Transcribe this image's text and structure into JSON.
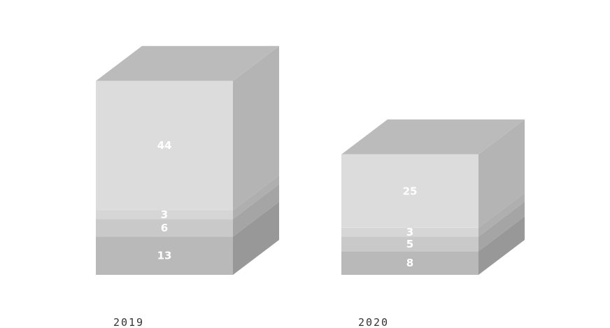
{
  "chart_data": {
    "type": "bar",
    "stacked": true,
    "style": "3d",
    "categories": [
      "2019",
      "2020"
    ],
    "series": [
      {
        "values": [
          13,
          8
        ],
        "color": "#b9b9b9"
      },
      {
        "values": [
          6,
          5
        ],
        "color": "#c9c9c9"
      },
      {
        "values": [
          3,
          3
        ],
        "color": "#d6d6d6"
      },
      {
        "values": [
          44,
          25
        ],
        "color": "#dcdcdc"
      }
    ],
    "data_labels": {
      "2019": [
        "13",
        "6",
        "3",
        "44"
      ],
      "2020": [
        "8",
        "5",
        "3",
        "25"
      ]
    },
    "title": "",
    "xlabel": "",
    "ylabel": "",
    "grid": false,
    "legend": false
  }
}
